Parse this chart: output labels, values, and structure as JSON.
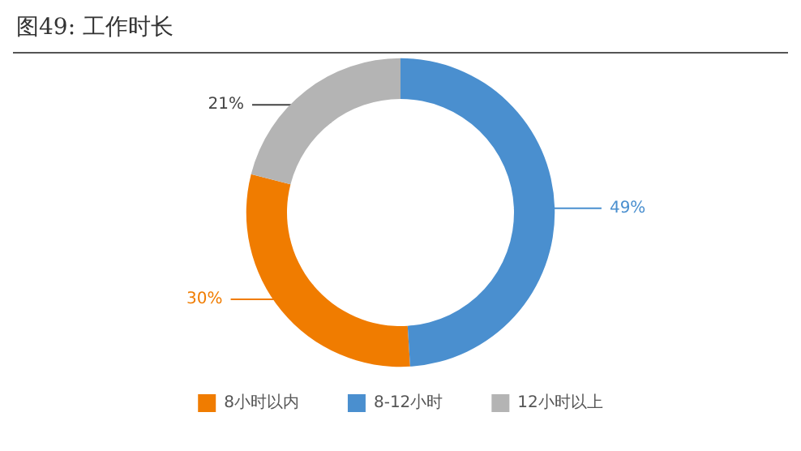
{
  "chart_data": {
    "type": "donut",
    "title": "图49: 工作时长",
    "categories": [
      "8小时以内",
      "8-12小时",
      "12小时以上"
    ],
    "values": [
      30,
      49,
      21
    ],
    "colors": [
      "#f07c00",
      "#4a8fcf",
      "#b4b4b4"
    ],
    "value_labels": [
      "30%",
      "49%",
      "21%"
    ],
    "legend": "bottom"
  }
}
